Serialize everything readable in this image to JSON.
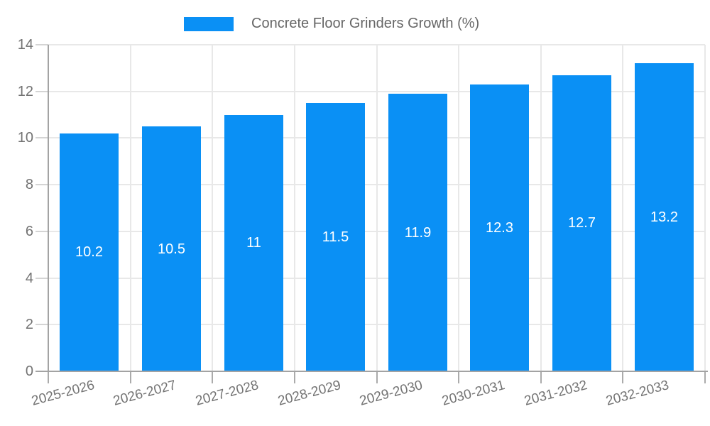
{
  "chart_data": {
    "type": "bar",
    "title": "",
    "legend_label": "Concrete Floor Grinders Growth (%)",
    "legend_position": "top",
    "categories": [
      "2025-2026",
      "2026-2027",
      "2027-2028",
      "2028-2029",
      "2029-2030",
      "2030-2031",
      "2031-2032",
      "2032-2033"
    ],
    "values": [
      10.2,
      10.5,
      11,
      11.5,
      11.9,
      12.3,
      12.7,
      13.2
    ],
    "bar_value_labels": [
      "10.2",
      "10.5",
      "11",
      "11.5",
      "11.9",
      "12.3",
      "12.7",
      "13.2"
    ],
    "xlabel": "",
    "ylabel": "",
    "ylim": [
      0,
      14
    ],
    "ytick_step": 2,
    "ytick_labels": [
      "0",
      "2",
      "4",
      "6",
      "8",
      "10",
      "12",
      "14"
    ],
    "grid": true,
    "colors": {
      "bar": "#0a90f5",
      "grid": "#e8e8e8",
      "axis": "#a3a3a3",
      "y_tick_mark": "#d4d4d4",
      "x_tick_mark": "#ababab",
      "tick_label": "#737373",
      "legend_text": "#666666",
      "bar_label": "#ffffff",
      "background": "#ffffff"
    }
  }
}
